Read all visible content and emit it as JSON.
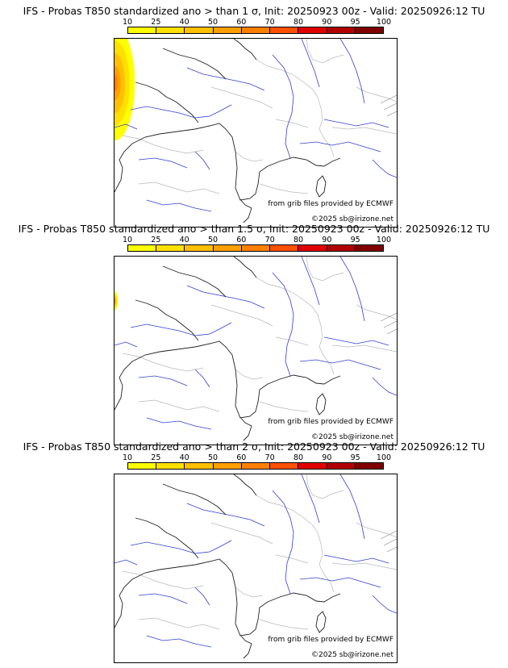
{
  "colorbar": {
    "ticks": [
      "10",
      "25",
      "40",
      "50",
      "60",
      "70",
      "80",
      "90",
      "95",
      "100"
    ],
    "colors": [
      "#ffff00",
      "#ffe000",
      "#ffc000",
      "#ffa000",
      "#ff8000",
      "#ff5000",
      "#e00000",
      "#b00000",
      "#800000"
    ]
  },
  "panels": [
    {
      "title": "IFS - Probas T850  standardized ano > than 1 σ, Init: 20250923 00z - Valid: 20250926:12 TU",
      "credit": "from grib files provided by ECMWF",
      "copyright": "©2025 sb@irizone.net",
      "anomaly_max_percent": 60
    },
    {
      "title": "IFS - Probas T850  standardized ano > than 1.5 σ, Init: 20250923 00z - Valid: 20250926:12 TU",
      "credit": "from grib files provided by ECMWF",
      "copyright": "©2025 sb@irizone.net",
      "anomaly_max_percent": 10
    },
    {
      "title": "IFS - Probas T850  standardized ano > than 2 σ, Init: 20250923 00z - Valid: 20250926:12 TU",
      "credit": "from grib files provided by ECMWF",
      "copyright": "©2025 sb@irizone.net",
      "anomaly_max_percent": 0
    }
  ]
}
